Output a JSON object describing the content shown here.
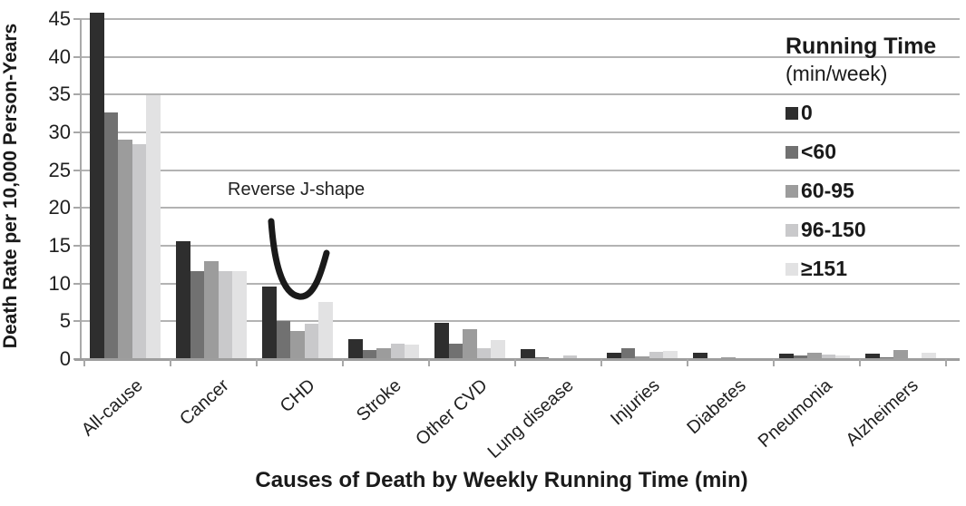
{
  "chart_data": {
    "type": "bar",
    "title": "",
    "xlabel": "Causes of Death by Weekly Running Time (min)",
    "ylabel": "Death Rate per 10,000 Person-Years",
    "ylim": [
      0,
      45
    ],
    "yticks": [
      0,
      5,
      10,
      15,
      20,
      25,
      30,
      35,
      40,
      45
    ],
    "grid": "horizontal",
    "annotation": {
      "text": "Reverse J-shape",
      "target_category": "CHD"
    },
    "legend": {
      "title": "Running Time",
      "subtitle": "(min/week)",
      "position": "top-right-inside"
    },
    "categories": [
      "All-cause",
      "Cancer",
      "CHD",
      "Stroke",
      "Other CVD",
      "Lung disease",
      "Injuries",
      "Diabetes",
      "Pneumonia",
      "Alzheimers"
    ],
    "series": [
      {
        "name": "0",
        "color": "#2e2e2e",
        "values": [
          45.8,
          15.6,
          9.6,
          2.6,
          4.8,
          1.3,
          0.8,
          0.9,
          0.7,
          0.7
        ]
      },
      {
        "name": "<60",
        "color": "#717171",
        "values": [
          32.6,
          11.7,
          5.0,
          1.2,
          2.0,
          0.2,
          1.5,
          0.1,
          0.5,
          0.3
        ]
      },
      {
        "name": "60-95",
        "color": "#9c9c9c",
        "values": [
          29.0,
          13.0,
          3.7,
          1.5,
          4.0,
          0.0,
          0.4,
          0.25,
          0.8,
          1.2
        ]
      },
      {
        "name": "96-150",
        "color": "#c9c9cb",
        "values": [
          28.4,
          11.7,
          4.7,
          2.1,
          1.4,
          0.5,
          1.0,
          0.0,
          0.6,
          0.0
        ]
      },
      {
        "name": "≥151",
        "color": "#e2e2e3",
        "values": [
          34.9,
          11.7,
          7.6,
          1.9,
          2.5,
          0.0,
          1.1,
          0.0,
          0.5,
          0.9
        ]
      }
    ],
    "colors": {
      "grid": "#b3b3b3",
      "axis": "#a8a8a8",
      "text": "#1f1f1f",
      "annotation_stroke": "#1a1a1a"
    }
  }
}
